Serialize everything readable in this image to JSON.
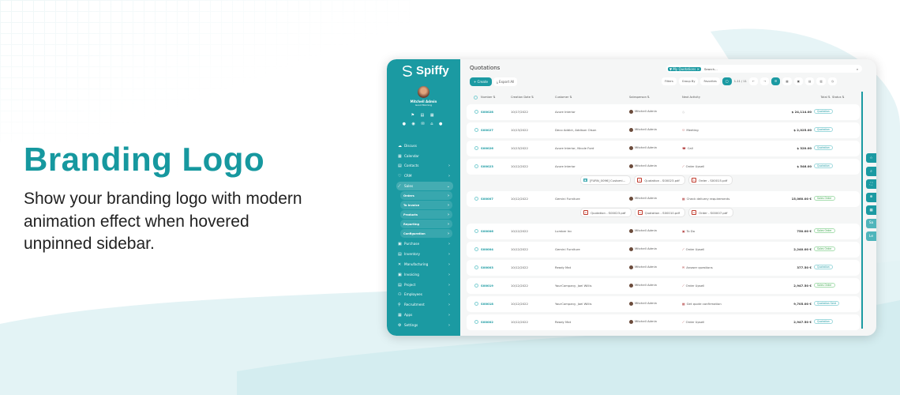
{
  "hero": {
    "title": "Branding Logo",
    "description": "Show your branding logo with modern animation effect when hovered unpinned sidebar."
  },
  "colors": {
    "brand": "#1b9aa2",
    "heading": "#16989f"
  },
  "sidebar": {
    "brand": "Spiffy",
    "user_name": "Mitchell Admin",
    "greeting": "Good Morning",
    "items": [
      {
        "label": "Discuss",
        "icon": "chat-icon",
        "chevron": false
      },
      {
        "label": "Calendar",
        "icon": "calendar-icon",
        "chevron": false
      },
      {
        "label": "Contacts",
        "icon": "contacts-icon",
        "chevron": true
      },
      {
        "label": "CRM",
        "icon": "handshake-icon",
        "chevron": true
      },
      {
        "label": "Sales",
        "icon": "chart-icon",
        "chevron": true,
        "expanded": true
      },
      {
        "label": "Orders",
        "sub": true
      },
      {
        "label": "To Invoice",
        "sub": true
      },
      {
        "label": "Products",
        "sub": true
      },
      {
        "label": "Reporting",
        "sub": true
      },
      {
        "label": "Configuration",
        "sub": true
      },
      {
        "label": "Purchase",
        "icon": "purchase-icon",
        "chevron": true
      },
      {
        "label": "Inventory",
        "icon": "box-icon",
        "chevron": true
      },
      {
        "label": "Manufacturing",
        "icon": "tools-icon",
        "chevron": true
      },
      {
        "label": "Invoicing",
        "icon": "invoice-icon",
        "chevron": true
      },
      {
        "label": "Project",
        "icon": "project-icon",
        "chevron": true
      },
      {
        "label": "Employees",
        "icon": "users-icon",
        "chevron": true
      },
      {
        "label": "Recruitment",
        "icon": "user-icon",
        "chevron": true
      },
      {
        "label": "Apps",
        "icon": "apps-icon",
        "chevron": true
      },
      {
        "label": "Settings",
        "icon": "gear-icon",
        "chevron": true
      }
    ]
  },
  "main": {
    "title": "Quotations",
    "create_label": "+ Create",
    "export_label": "Export All",
    "search": {
      "facet": "My Quotations",
      "placeholder": "Search..."
    },
    "toolbar": {
      "filters": "Filters",
      "group_by": "Group By",
      "favorites": "Favorites",
      "pager": "1-11 / 11"
    },
    "columns": {
      "number": "Number ⇅",
      "date": "Creation Date ⇅",
      "customer": "Customer ⇅",
      "salesperson": "Salesperson ⇅",
      "activity": "Next Activity",
      "total": "Total ⇅",
      "status": "Status ⇅"
    },
    "rows": [
      {
        "number": "S00028",
        "date": "10/17/2022",
        "customer": "Azure Interior",
        "salesperson": "Mitchell Admin",
        "activity": "",
        "activity_icon": "clock-icon",
        "total": "$ 24,114.00",
        "status": "Quotation"
      },
      {
        "number": "S00027",
        "date": "10/13/2022",
        "customer": "Deco Addict, Addison Olson",
        "salesperson": "Mitchell Admin",
        "activity": "Meeting",
        "activity_icon": "users-icon",
        "total": "$ 2,025.00",
        "status": "Quotation"
      },
      {
        "number": "S00026",
        "date": "10/13/2022",
        "customer": "Azure Interior, Nicole Ford",
        "salesperson": "Mitchell Admin",
        "activity": "Call",
        "activity_icon": "phone-icon",
        "total": "$ 320.00",
        "status": "Quotation"
      },
      {
        "number": "S00023",
        "date": "10/12/2022",
        "customer": "Azure Interior",
        "salesperson": "Mitchell Admin",
        "activity": "Order Upsell",
        "activity_icon": "chart-icon",
        "total": "$ 546.00",
        "status": "Quotation",
        "attachments": [
          {
            "name": "[FURN_0096] Customi...",
            "type": "image"
          },
          {
            "name": "Quotation - S00023.pdf",
            "type": "pdf"
          },
          {
            "name": "Order - S00015.pdf",
            "type": "pdf"
          }
        ]
      },
      {
        "number": "S00007",
        "date": "10/12/2022",
        "customer": "Gemini Furniture",
        "salesperson": "Mitchell Admin",
        "activity": "Check delivery requirements",
        "activity_icon": "calendar-icon",
        "total": "15,060.00 €",
        "status": "Sales Order",
        "attachments": [
          {
            "name": "Quotation - S00023.pdf",
            "type": "pdf"
          },
          {
            "name": "Quotation - S00010.pdf",
            "type": "pdf"
          },
          {
            "name": "Order - S00007.pdf",
            "type": "pdf"
          }
        ]
      },
      {
        "number": "S00006",
        "date": "10/12/2022",
        "customer": "Lumber Inc",
        "salesperson": "Mitchell Admin",
        "activity": "To Do",
        "activity_icon": "todo-icon",
        "total": "750.00 €",
        "status": "Sales Order"
      },
      {
        "number": "S00004",
        "date": "10/12/2022",
        "customer": "Gemini Furniture",
        "salesperson": "Mitchell Admin",
        "activity": "Order Upsell",
        "activity_icon": "chart-icon",
        "total": "2,240.00 €",
        "status": "Sales Order"
      },
      {
        "number": "S00003",
        "date": "10/12/2022",
        "customer": "Ready Mat",
        "salesperson": "Mitchell Admin",
        "activity": "Answer questions",
        "activity_icon": "mail-icon",
        "total": "377.50 €",
        "status": "Quotation"
      },
      {
        "number": "S00019",
        "date": "10/12/2022",
        "customer": "YourCompany, Joel Willis",
        "salesperson": "Mitchell Admin",
        "activity": "Order Upsell",
        "activity_icon": "chart-icon",
        "total": "2,947.50 €",
        "status": "Sales Order"
      },
      {
        "number": "S00018",
        "date": "10/12/2022",
        "customer": "YourCompany, Joel Willis",
        "salesperson": "Mitchell Admin",
        "activity": "Get quote confirmation",
        "activity_icon": "calendar-icon",
        "total": "9,705.00 €",
        "status": "Quotation Sent"
      },
      {
        "number": "S00002",
        "date": "10/12/2022",
        "customer": "Ready Mat",
        "salesperson": "Mitchell Admin",
        "activity": "Order Upsell",
        "activity_icon": "chart-icon",
        "total": "2,947.50 €",
        "status": "Quotation"
      }
    ]
  },
  "floating_buttons": [
    {
      "icon": "star-icon"
    },
    {
      "icon": "search-icon"
    },
    {
      "icon": "fullscreen-icon"
    },
    {
      "icon": "zoom-icon"
    },
    {
      "icon": "grid-icon"
    },
    {
      "label": "Sa"
    },
    {
      "label": "Le"
    }
  ]
}
